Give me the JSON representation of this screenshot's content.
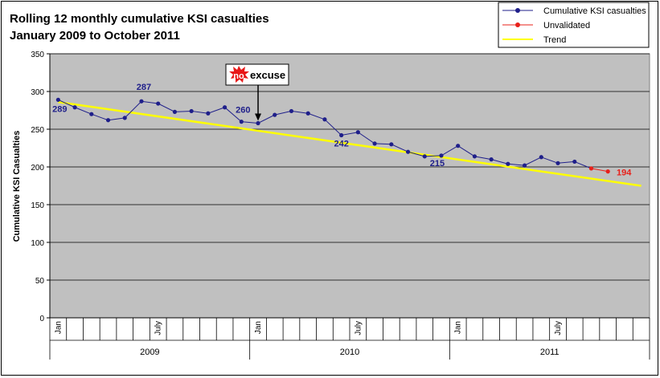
{
  "chart_data": {
    "type": "line",
    "title_line1": "Rolling 12 monthly cumulative KSI casualties",
    "title_line2": "January 2009 to October 2011",
    "ylabel": "Cumulative KSI Casualties",
    "xlabel": "",
    "ylim": [
      0,
      350
    ],
    "yticks": [
      0,
      50,
      100,
      150,
      200,
      250,
      300,
      350
    ],
    "grid": true,
    "legend_position": "top-right",
    "x_month_labels": [
      {
        "index": 0,
        "label": "Jan"
      },
      {
        "index": 6,
        "label": "July"
      },
      {
        "index": 12,
        "label": "Jan"
      },
      {
        "index": 18,
        "label": "July"
      },
      {
        "index": 24,
        "label": "Jan"
      },
      {
        "index": 30,
        "label": "July"
      }
    ],
    "x_year_groups": [
      {
        "label": "2009",
        "start": 0,
        "end": 11
      },
      {
        "label": "2010",
        "start": 12,
        "end": 23
      },
      {
        "label": "2011",
        "start": 24,
        "end": 35
      }
    ],
    "month_slots": 36,
    "series": [
      {
        "name": "Cumulative KSI casualties",
        "color": "#1f1f8a",
        "x": [
          0,
          1,
          2,
          3,
          4,
          5,
          6,
          7,
          8,
          9,
          10,
          11,
          12,
          13,
          14,
          15,
          16,
          17,
          18,
          19,
          20,
          21,
          22,
          23,
          24,
          25,
          26,
          27,
          28,
          29,
          30,
          31,
          32,
          33
        ],
        "values": [
          289,
          279,
          270,
          262,
          265,
          287,
          284,
          273,
          274,
          271,
          279,
          260,
          258,
          269,
          274,
          271,
          263,
          242,
          246,
          231,
          230,
          220,
          214,
          215,
          228,
          214,
          210,
          204,
          202,
          213,
          205,
          207,
          198,
          194
        ]
      },
      {
        "name": "Unvalidated",
        "color": "#e8201a",
        "x": [
          32,
          33
        ],
        "values": [
          198,
          194
        ]
      },
      {
        "name": "Trend",
        "color": "#ffff00",
        "type": "line",
        "x": [
          0,
          35
        ],
        "values": [
          286,
          175
        ]
      }
    ],
    "data_labels": [
      {
        "index": 0,
        "text": "289",
        "color": "#1f1f8a"
      },
      {
        "index": 5,
        "text": "287",
        "color": "#1f1f8a"
      },
      {
        "index": 11,
        "text": "260",
        "color": "#1f1f8a"
      },
      {
        "index": 17,
        "text": "242",
        "color": "#1f1f8a"
      },
      {
        "index": 23,
        "text": "215",
        "color": "#1f1f8a"
      },
      {
        "index": 33,
        "text": "194",
        "color": "#e8201a"
      }
    ],
    "annotation": {
      "badge_part1": "no",
      "badge_part2": "excuse",
      "points_to_index": 12
    }
  }
}
